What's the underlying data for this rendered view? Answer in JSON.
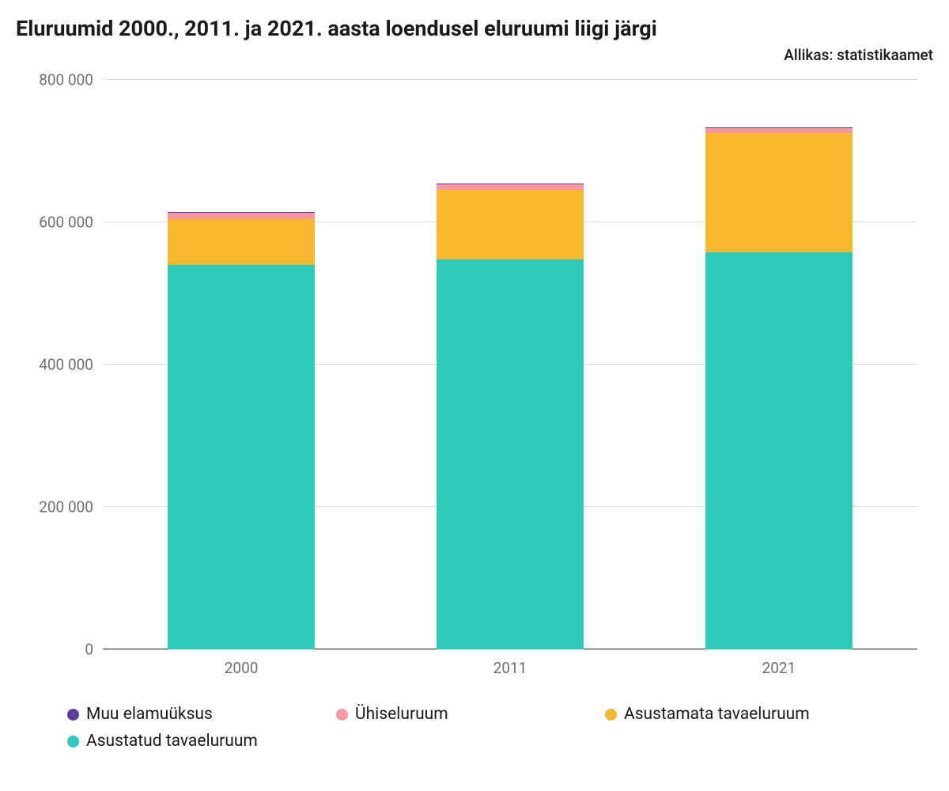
{
  "title": "Eluruumid 2000., 2011. ja 2021. aasta loendusel eluruumi liigi järgi",
  "source": "Allikas: statistikaamet",
  "chart": {
    "type": "stacked-bar",
    "background_color": "#ffffff",
    "grid_color": "#dcdcdc",
    "axis_line_color": "#1a1a1a",
    "tick_label_color": "#6e6e6e",
    "tick_fontsize": 19,
    "title_fontsize": 27,
    "categories": [
      "2000",
      "2011",
      "2021"
    ],
    "ylim": [
      0,
      800000
    ],
    "yticks": [
      0,
      200000,
      400000,
      600000,
      800000
    ],
    "ytick_labels": [
      "0",
      "200 000",
      "400 000",
      "600 000",
      "800 000"
    ],
    "bar_width_pct": 18,
    "bar_positions_pct": [
      17,
      50,
      83
    ],
    "series": [
      {
        "key": "muu_elamuuksus",
        "label": "Muu elamuüksus",
        "color": "#5b3e9b"
      },
      {
        "key": "uhiseluruum",
        "label": "Ühiseluruum",
        "color": "#f797a4"
      },
      {
        "key": "asustamata",
        "label": "Asustamata tavaeluruum",
        "color": "#f7b731"
      },
      {
        "key": "asustatud",
        "label": "Asustatud tavaeluruum",
        "color": "#2ecbbb"
      }
    ],
    "stack_order": [
      "asustatud",
      "asustamata",
      "uhiseluruum",
      "muu_elamuuksus"
    ],
    "data": [
      {
        "asustatud": 540000,
        "asustamata": 65000,
        "uhiseluruum": 8000,
        "muu_elamuuksus": 1000
      },
      {
        "asustatud": 548000,
        "asustamata": 98000,
        "uhiseluruum": 8000,
        "muu_elamuuksus": 1000
      },
      {
        "asustatud": 558000,
        "asustamata": 168000,
        "uhiseluruum": 6000,
        "muu_elamuuksus": 1000
      }
    ]
  }
}
